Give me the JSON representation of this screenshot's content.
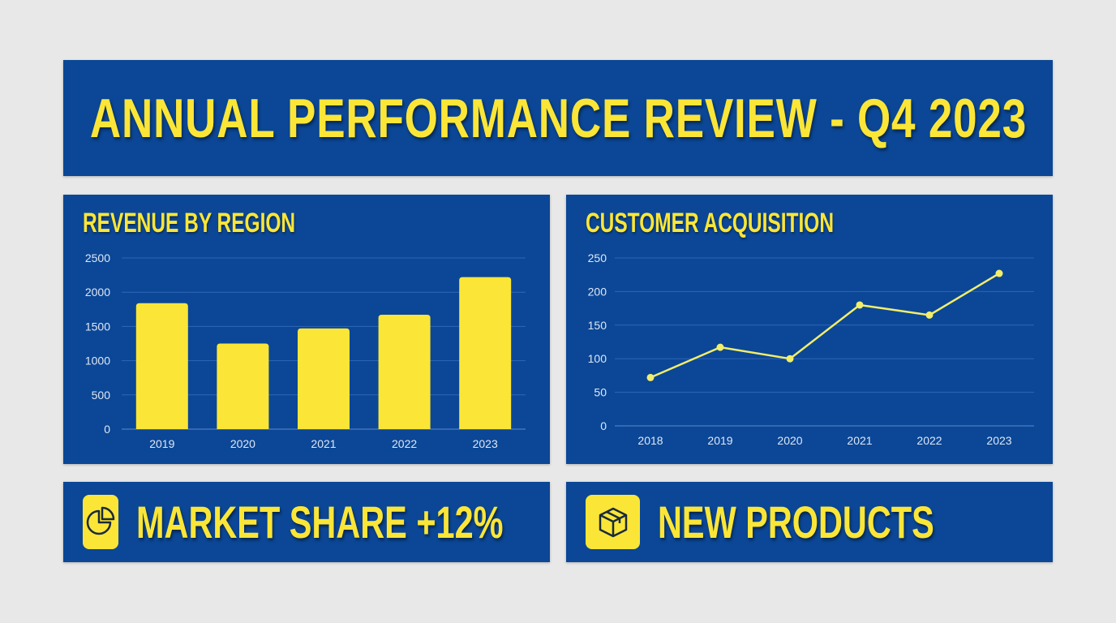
{
  "header": {
    "title": "ANNUAL PERFORMANCE REVIEW - Q4 2023"
  },
  "colors": {
    "background": "#e8e8e8",
    "panel": "#0b4796",
    "accent": "#fbe637",
    "gridline": "#2f66b8",
    "tick_text": "#dfe7f5"
  },
  "revenue_chart": {
    "title": "REVENUE BY REGION",
    "y_ticks": [
      "0",
      "500",
      "1000",
      "1500",
      "2000",
      "2500"
    ],
    "categories": [
      "2019",
      "2020",
      "2021",
      "2022",
      "2023"
    ]
  },
  "acquisition_chart": {
    "title": "CUSTOMER ACQUISITION",
    "y_ticks": [
      "0",
      "50",
      "100",
      "150",
      "200",
      "250"
    ],
    "categories": [
      "2018",
      "2019",
      "2020",
      "2021",
      "2022",
      "2023"
    ]
  },
  "stats": [
    {
      "icon": "pie-chart-icon",
      "label": "MARKET SHARE +12%"
    },
    {
      "icon": "box-icon",
      "label": "NEW PRODUCTS"
    }
  ],
  "chart_data": [
    {
      "type": "bar",
      "title": "REVENUE BY REGION",
      "categories": [
        "2019",
        "2020",
        "2021",
        "2022",
        "2023"
      ],
      "values": [
        1840,
        1250,
        1470,
        1670,
        2220
      ],
      "xlabel": "",
      "ylabel": "",
      "ylim": [
        0,
        2500
      ],
      "yticks": [
        0,
        500,
        1000,
        1500,
        2000,
        2500
      ],
      "grid": true,
      "legend": null
    },
    {
      "type": "line",
      "title": "CUSTOMER ACQUISITION",
      "categories": [
        "2018",
        "2019",
        "2020",
        "2021",
        "2022",
        "2023"
      ],
      "values": [
        72,
        117,
        100,
        180,
        165,
        227
      ],
      "xlabel": "",
      "ylabel": "",
      "ylim": [
        0,
        250
      ],
      "yticks": [
        0,
        50,
        100,
        150,
        200,
        250
      ],
      "grid": true,
      "markers": true,
      "legend": null
    }
  ]
}
